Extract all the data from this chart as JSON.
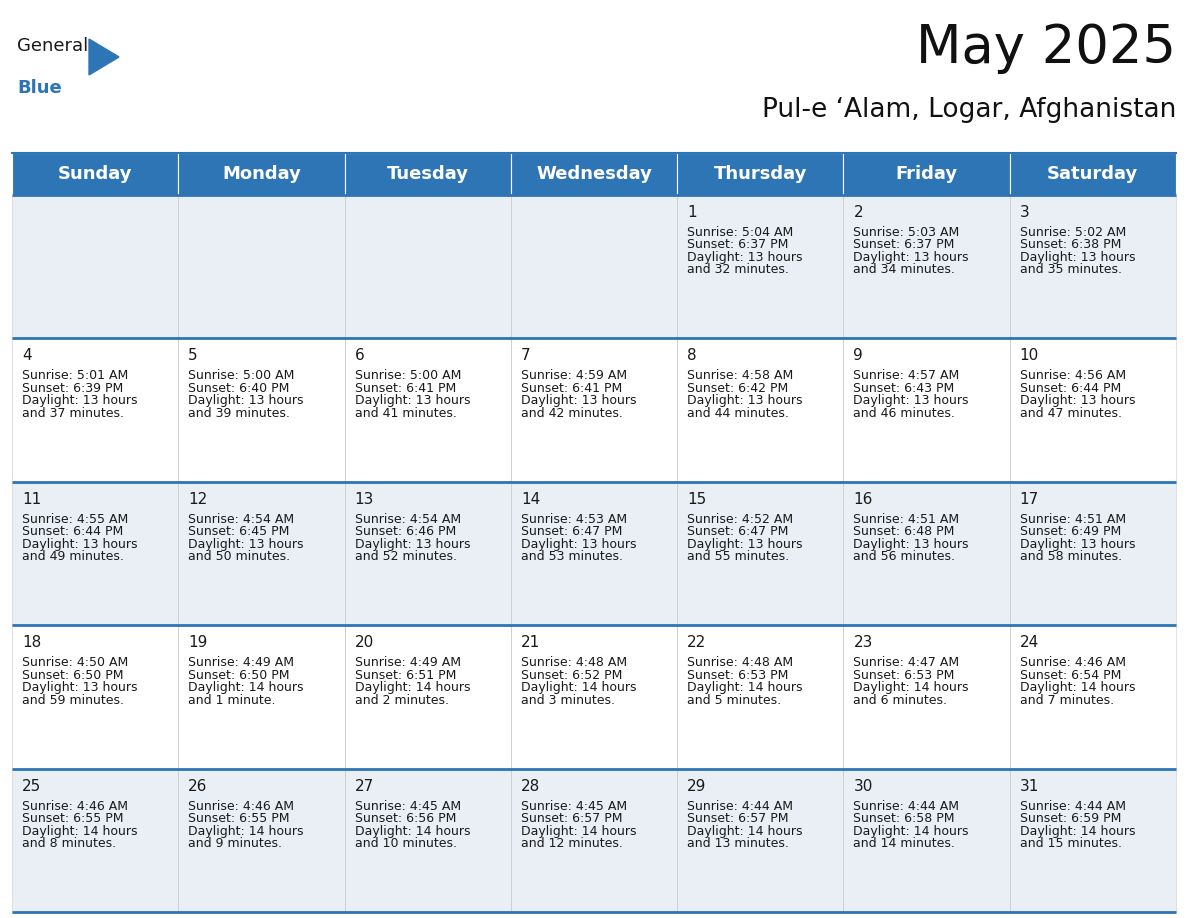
{
  "title": "May 2025",
  "subtitle": "Pul-e ‘Alam, Logar, Afghanistan",
  "header_bg": "#2E75B6",
  "header_text": "#FFFFFF",
  "row_bg_even": "#EAEFF5",
  "row_bg_odd": "#FFFFFF",
  "separator_color": "#2E75B6",
  "cell_border_color": "#CCCCCC",
  "text_color": "#1a1a1a",
  "day_headers": [
    "Sunday",
    "Monday",
    "Tuesday",
    "Wednesday",
    "Thursday",
    "Friday",
    "Saturday"
  ],
  "weeks": [
    [
      {
        "day": "",
        "sunrise": "",
        "sunset": "",
        "daylight_line3": "",
        "daylight_line4": ""
      },
      {
        "day": "",
        "sunrise": "",
        "sunset": "",
        "daylight_line3": "",
        "daylight_line4": ""
      },
      {
        "day": "",
        "sunrise": "",
        "sunset": "",
        "daylight_line3": "",
        "daylight_line4": ""
      },
      {
        "day": "",
        "sunrise": "",
        "sunset": "",
        "daylight_line3": "",
        "daylight_line4": ""
      },
      {
        "day": "1",
        "sunrise": "Sunrise: 5:04 AM",
        "sunset": "Sunset: 6:37 PM",
        "daylight_line3": "Daylight: 13 hours",
        "daylight_line4": "and 32 minutes."
      },
      {
        "day": "2",
        "sunrise": "Sunrise: 5:03 AM",
        "sunset": "Sunset: 6:37 PM",
        "daylight_line3": "Daylight: 13 hours",
        "daylight_line4": "and 34 minutes."
      },
      {
        "day": "3",
        "sunrise": "Sunrise: 5:02 AM",
        "sunset": "Sunset: 6:38 PM",
        "daylight_line3": "Daylight: 13 hours",
        "daylight_line4": "and 35 minutes."
      }
    ],
    [
      {
        "day": "4",
        "sunrise": "Sunrise: 5:01 AM",
        "sunset": "Sunset: 6:39 PM",
        "daylight_line3": "Daylight: 13 hours",
        "daylight_line4": "and 37 minutes."
      },
      {
        "day": "5",
        "sunrise": "Sunrise: 5:00 AM",
        "sunset": "Sunset: 6:40 PM",
        "daylight_line3": "Daylight: 13 hours",
        "daylight_line4": "and 39 minutes."
      },
      {
        "day": "6",
        "sunrise": "Sunrise: 5:00 AM",
        "sunset": "Sunset: 6:41 PM",
        "daylight_line3": "Daylight: 13 hours",
        "daylight_line4": "and 41 minutes."
      },
      {
        "day": "7",
        "sunrise": "Sunrise: 4:59 AM",
        "sunset": "Sunset: 6:41 PM",
        "daylight_line3": "Daylight: 13 hours",
        "daylight_line4": "and 42 minutes."
      },
      {
        "day": "8",
        "sunrise": "Sunrise: 4:58 AM",
        "sunset": "Sunset: 6:42 PM",
        "daylight_line3": "Daylight: 13 hours",
        "daylight_line4": "and 44 minutes."
      },
      {
        "day": "9",
        "sunrise": "Sunrise: 4:57 AM",
        "sunset": "Sunset: 6:43 PM",
        "daylight_line3": "Daylight: 13 hours",
        "daylight_line4": "and 46 minutes."
      },
      {
        "day": "10",
        "sunrise": "Sunrise: 4:56 AM",
        "sunset": "Sunset: 6:44 PM",
        "daylight_line3": "Daylight: 13 hours",
        "daylight_line4": "and 47 minutes."
      }
    ],
    [
      {
        "day": "11",
        "sunrise": "Sunrise: 4:55 AM",
        "sunset": "Sunset: 6:44 PM",
        "daylight_line3": "Daylight: 13 hours",
        "daylight_line4": "and 49 minutes."
      },
      {
        "day": "12",
        "sunrise": "Sunrise: 4:54 AM",
        "sunset": "Sunset: 6:45 PM",
        "daylight_line3": "Daylight: 13 hours",
        "daylight_line4": "and 50 minutes."
      },
      {
        "day": "13",
        "sunrise": "Sunrise: 4:54 AM",
        "sunset": "Sunset: 6:46 PM",
        "daylight_line3": "Daylight: 13 hours",
        "daylight_line4": "and 52 minutes."
      },
      {
        "day": "14",
        "sunrise": "Sunrise: 4:53 AM",
        "sunset": "Sunset: 6:47 PM",
        "daylight_line3": "Daylight: 13 hours",
        "daylight_line4": "and 53 minutes."
      },
      {
        "day": "15",
        "sunrise": "Sunrise: 4:52 AM",
        "sunset": "Sunset: 6:47 PM",
        "daylight_line3": "Daylight: 13 hours",
        "daylight_line4": "and 55 minutes."
      },
      {
        "day": "16",
        "sunrise": "Sunrise: 4:51 AM",
        "sunset": "Sunset: 6:48 PM",
        "daylight_line3": "Daylight: 13 hours",
        "daylight_line4": "and 56 minutes."
      },
      {
        "day": "17",
        "sunrise": "Sunrise: 4:51 AM",
        "sunset": "Sunset: 6:49 PM",
        "daylight_line3": "Daylight: 13 hours",
        "daylight_line4": "and 58 minutes."
      }
    ],
    [
      {
        "day": "18",
        "sunrise": "Sunrise: 4:50 AM",
        "sunset": "Sunset: 6:50 PM",
        "daylight_line3": "Daylight: 13 hours",
        "daylight_line4": "and 59 minutes."
      },
      {
        "day": "19",
        "sunrise": "Sunrise: 4:49 AM",
        "sunset": "Sunset: 6:50 PM",
        "daylight_line3": "Daylight: 14 hours",
        "daylight_line4": "and 1 minute."
      },
      {
        "day": "20",
        "sunrise": "Sunrise: 4:49 AM",
        "sunset": "Sunset: 6:51 PM",
        "daylight_line3": "Daylight: 14 hours",
        "daylight_line4": "and 2 minutes."
      },
      {
        "day": "21",
        "sunrise": "Sunrise: 4:48 AM",
        "sunset": "Sunset: 6:52 PM",
        "daylight_line3": "Daylight: 14 hours",
        "daylight_line4": "and 3 minutes."
      },
      {
        "day": "22",
        "sunrise": "Sunrise: 4:48 AM",
        "sunset": "Sunset: 6:53 PM",
        "daylight_line3": "Daylight: 14 hours",
        "daylight_line4": "and 5 minutes."
      },
      {
        "day": "23",
        "sunrise": "Sunrise: 4:47 AM",
        "sunset": "Sunset: 6:53 PM",
        "daylight_line3": "Daylight: 14 hours",
        "daylight_line4": "and 6 minutes."
      },
      {
        "day": "24",
        "sunrise": "Sunrise: 4:46 AM",
        "sunset": "Sunset: 6:54 PM",
        "daylight_line3": "Daylight: 14 hours",
        "daylight_line4": "and 7 minutes."
      }
    ],
    [
      {
        "day": "25",
        "sunrise": "Sunrise: 4:46 AM",
        "sunset": "Sunset: 6:55 PM",
        "daylight_line3": "Daylight: 14 hours",
        "daylight_line4": "and 8 minutes."
      },
      {
        "day": "26",
        "sunrise": "Sunrise: 4:46 AM",
        "sunset": "Sunset: 6:55 PM",
        "daylight_line3": "Daylight: 14 hours",
        "daylight_line4": "and 9 minutes."
      },
      {
        "day": "27",
        "sunrise": "Sunrise: 4:45 AM",
        "sunset": "Sunset: 6:56 PM",
        "daylight_line3": "Daylight: 14 hours",
        "daylight_line4": "and 10 minutes."
      },
      {
        "day": "28",
        "sunrise": "Sunrise: 4:45 AM",
        "sunset": "Sunset: 6:57 PM",
        "daylight_line3": "Daylight: 14 hours",
        "daylight_line4": "and 12 minutes."
      },
      {
        "day": "29",
        "sunrise": "Sunrise: 4:44 AM",
        "sunset": "Sunset: 6:57 PM",
        "daylight_line3": "Daylight: 14 hours",
        "daylight_line4": "and 13 minutes."
      },
      {
        "day": "30",
        "sunrise": "Sunrise: 4:44 AM",
        "sunset": "Sunset: 6:58 PM",
        "daylight_line3": "Daylight: 14 hours",
        "daylight_line4": "and 14 minutes."
      },
      {
        "day": "31",
        "sunrise": "Sunrise: 4:44 AM",
        "sunset": "Sunset: 6:59 PM",
        "daylight_line3": "Daylight: 14 hours",
        "daylight_line4": "and 15 minutes."
      }
    ]
  ],
  "title_fontsize": 38,
  "subtitle_fontsize": 19,
  "header_fontsize": 13,
  "day_num_fontsize": 11,
  "cell_text_fontsize": 9
}
